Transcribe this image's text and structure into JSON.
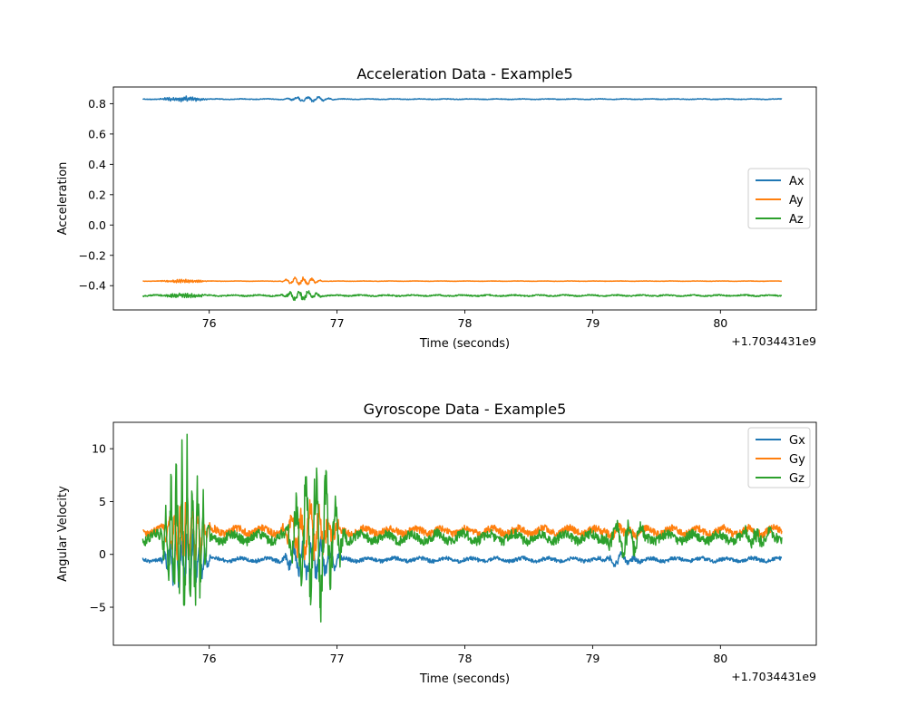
{
  "chart_data": [
    {
      "type": "line",
      "title": "Acceleration Data - Example5",
      "xlabel": "Time (seconds)",
      "ylabel": "Acceleration",
      "x_offset_label": "+1.7034431e9",
      "xlim": [
        75.25,
        80.75
      ],
      "ylim": [
        -0.56,
        0.91
      ],
      "xticks": [
        76,
        77,
        78,
        79,
        80
      ],
      "yticks": [
        -0.4,
        -0.2,
        0.0,
        0.2,
        0.4,
        0.6,
        0.8
      ],
      "ytick_labels": [
        "−0.4",
        "−0.2",
        "0.0",
        "0.2",
        "0.4",
        "0.6",
        "0.8"
      ],
      "legend_position": "center-right",
      "x_range": [
        75.48,
        80.48
      ],
      "series": [
        {
          "name": "Ax",
          "color": "#1f77b4",
          "base": 0.83,
          "events": [
            {
              "x": 75.65,
              "dur": 0.35,
              "amp": 0.012,
              "freq": 60
            },
            {
              "x": 76.6,
              "dur": 0.4,
              "amp": 0.012,
              "freq": 12
            }
          ],
          "noise": 0.002
        },
        {
          "name": "Ay",
          "color": "#ff7f0e",
          "base": -0.37,
          "events": [
            {
              "x": 75.65,
              "dur": 0.35,
              "amp": 0.008,
              "freq": 60
            },
            {
              "x": 76.6,
              "dur": 0.3,
              "amp": 0.018,
              "freq": 15
            }
          ],
          "noise": 0.001
        },
        {
          "name": "Az",
          "color": "#2ca02c",
          "base": -0.465,
          "events": [
            {
              "x": 75.65,
              "dur": 0.35,
              "amp": 0.01,
              "freq": 60
            },
            {
              "x": 76.6,
              "dur": 0.3,
              "amp": 0.025,
              "freq": 14
            }
          ],
          "noise": 0.004
        }
      ]
    },
    {
      "type": "line",
      "title": "Gyroscope Data - Example5",
      "xlabel": "Time (seconds)",
      "ylabel": "Angular Velocity",
      "x_offset_label": "+1.7034431e9",
      "xlim": [
        75.25,
        80.75
      ],
      "ylim": [
        -8.6,
        12.5
      ],
      "xticks": [
        76,
        77,
        78,
        79,
        80
      ],
      "yticks": [
        -5,
        0,
        5,
        10
      ],
      "ytick_labels": [
        "−5",
        "0",
        "5",
        "10"
      ],
      "legend_position": "upper-right",
      "x_range": [
        75.48,
        80.48
      ],
      "series": [
        {
          "name": "Gx",
          "color": "#1f77b4",
          "base": -0.5,
          "events": [
            {
              "x": 75.66,
              "dur": 0.36,
              "amp": 2.0,
              "freq": 22
            },
            {
              "x": 76.6,
              "dur": 0.45,
              "amp": 1.5,
              "freq": 14
            },
            {
              "x": 79.1,
              "dur": 0.3,
              "amp": 0.4,
              "freq": 10
            }
          ],
          "noise": 0.18
        },
        {
          "name": "Gy",
          "color": "#ff7f0e",
          "base": 2.2,
          "events": [
            {
              "x": 75.66,
              "dur": 0.36,
              "amp": 2.2,
              "freq": 22
            },
            {
              "x": 76.6,
              "dur": 0.45,
              "amp": 2.0,
              "freq": 14
            },
            {
              "x": 79.1,
              "dur": 0.3,
              "amp": 0.4,
              "freq": 10
            }
          ],
          "noise": 0.35
        },
        {
          "name": "Gz",
          "color": "#2ca02c",
          "base": 1.6,
          "events": [
            {
              "x": 75.66,
              "dur": 0.36,
              "amp": 6.0,
              "freq": 24
            },
            {
              "x": 76.63,
              "dur": 0.45,
              "amp": 5.0,
              "freq": 13
            },
            {
              "x": 79.1,
              "dur": 0.35,
              "amp": 1.2,
              "freq": 10
            },
            {
              "x": 80.2,
              "dur": 0.25,
              "amp": 0.7,
              "freq": 10
            }
          ],
          "noise": 0.45
        }
      ]
    }
  ]
}
